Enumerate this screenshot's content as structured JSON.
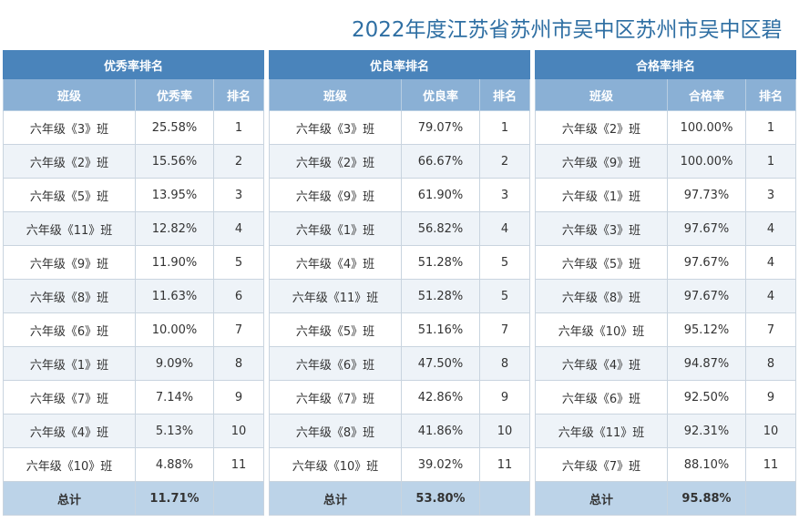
{
  "title": "2022年度江苏省苏州市吴中区苏州市吴中区碧",
  "panels": [
    {
      "name": "优秀率排名",
      "cols": [
        "班级",
        "优秀率",
        "排名"
      ],
      "rows": [
        [
          "六年级《3》班",
          "25.58%",
          "1"
        ],
        [
          "六年级《2》班",
          "15.56%",
          "2"
        ],
        [
          "六年级《5》班",
          "13.95%",
          "3"
        ],
        [
          "六年级《11》班",
          "12.82%",
          "4"
        ],
        [
          "六年级《9》班",
          "11.90%",
          "5"
        ],
        [
          "六年级《8》班",
          "11.63%",
          "6"
        ],
        [
          "六年级《6》班",
          "10.00%",
          "7"
        ],
        [
          "六年级《1》班",
          "9.09%",
          "8"
        ],
        [
          "六年级《7》班",
          "7.14%",
          "9"
        ],
        [
          "六年级《4》班",
          "5.13%",
          "10"
        ],
        [
          "六年级《10》班",
          "4.88%",
          "11"
        ]
      ],
      "total_label": "总计",
      "total_value": "11.71%"
    },
    {
      "name": "优良率排名",
      "cols": [
        "班级",
        "优良率",
        "排名"
      ],
      "rows": [
        [
          "六年级《3》班",
          "79.07%",
          "1"
        ],
        [
          "六年级《2》班",
          "66.67%",
          "2"
        ],
        [
          "六年级《9》班",
          "61.90%",
          "3"
        ],
        [
          "六年级《1》班",
          "56.82%",
          "4"
        ],
        [
          "六年级《4》班",
          "51.28%",
          "5"
        ],
        [
          "六年级《11》班",
          "51.28%",
          "5"
        ],
        [
          "六年级《5》班",
          "51.16%",
          "7"
        ],
        [
          "六年级《6》班",
          "47.50%",
          "8"
        ],
        [
          "六年级《7》班",
          "42.86%",
          "9"
        ],
        [
          "六年级《8》班",
          "41.86%",
          "10"
        ],
        [
          "六年级《10》班",
          "39.02%",
          "11"
        ]
      ],
      "total_label": "总计",
      "total_value": "53.80%"
    },
    {
      "name": "合格率排名",
      "cols": [
        "班级",
        "合格率",
        "排名"
      ],
      "rows": [
        [
          "六年级《2》班",
          "100.00%",
          "1"
        ],
        [
          "六年级《9》班",
          "100.00%",
          "1"
        ],
        [
          "六年级《1》班",
          "97.73%",
          "3"
        ],
        [
          "六年级《3》班",
          "97.67%",
          "4"
        ],
        [
          "六年级《5》班",
          "97.67%",
          "4"
        ],
        [
          "六年级《8》班",
          "97.67%",
          "4"
        ],
        [
          "六年级《10》班",
          "95.12%",
          "7"
        ],
        [
          "六年级《4》班",
          "94.87%",
          "8"
        ],
        [
          "六年级《6》班",
          "92.50%",
          "9"
        ],
        [
          "六年级《11》班",
          "92.31%",
          "10"
        ],
        [
          "六年级《7》班",
          "88.10%",
          "11"
        ]
      ],
      "total_label": "总计",
      "total_value": "95.88%"
    }
  ]
}
